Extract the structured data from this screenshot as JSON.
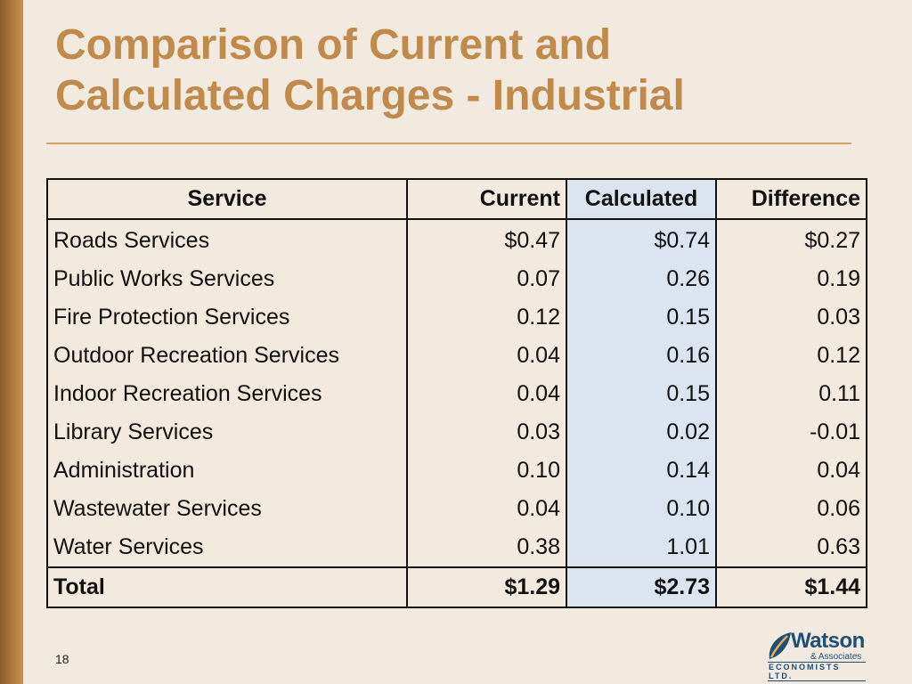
{
  "slide": {
    "title_line1": "Comparison of Current and",
    "title_line2": "Calculated Charges - Industrial",
    "page_number": "18"
  },
  "table": {
    "headers": [
      "Service",
      "Current",
      "Calculated",
      "Difference"
    ],
    "rows": [
      [
        "Roads Services",
        "$0.47",
        "$0.74",
        "$0.27"
      ],
      [
        "Public Works Services",
        "0.07",
        "0.26",
        "0.19"
      ],
      [
        "Fire Protection Services",
        "0.12",
        "0.15",
        "0.03"
      ],
      [
        "Outdoor Recreation Services",
        "0.04",
        "0.16",
        "0.12"
      ],
      [
        "Indoor Recreation Services",
        "0.04",
        "0.15",
        "0.11"
      ],
      [
        "Library Services",
        "0.03",
        "0.02",
        "-0.01"
      ],
      [
        "Administration",
        "0.10",
        "0.14",
        "0.04"
      ],
      [
        "Wastewater Services",
        "0.04",
        "0.10",
        "0.06"
      ],
      [
        "Water Services",
        "0.38",
        "1.01",
        "0.63"
      ]
    ],
    "total": [
      "Total",
      "$1.29",
      "$2.73",
      "$1.44"
    ]
  },
  "logo": {
    "name": "Watson",
    "subtitle": "& Associates",
    "tagline": "ECONOMISTS LTD."
  },
  "colors": {
    "background": "#f2e9df",
    "title": "#c08a4c",
    "calculated_highlight": "#dce4f0",
    "logo_blue": "#1f4e79"
  }
}
